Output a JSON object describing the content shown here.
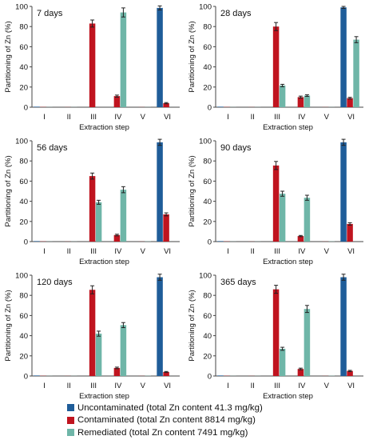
{
  "figure": {
    "ylabel": "Partitioning of Zn (%)",
    "xlabel": "Extraction step"
  },
  "colors": {
    "uncontaminated": "#1f5d99",
    "contaminated": "#c0141f",
    "remediated": "#6fb6a8"
  },
  "legend": [
    {
      "key": "uncontaminated",
      "label": "Uncontaminated (total Zn content 41.3 mg/kg)"
    },
    {
      "key": "contaminated",
      "label": "Contaminated (total Zn content 8814 mg/kg)"
    },
    {
      "key": "remediated",
      "label": "Remediated (total Zn content 7491 mg/kg)"
    }
  ],
  "chart_data": [
    {
      "type": "bar",
      "title": "7 days",
      "categories": [
        "I",
        "II",
        "III",
        "IV",
        "V",
        "VI"
      ],
      "ylim": [
        0,
        100
      ],
      "yticks": [
        0,
        20,
        40,
        60,
        80,
        100
      ],
      "xlabel": "Extraction step",
      "ylabel": "Partitioning of Zn (%)",
      "series": [
        {
          "name": "Uncontaminated (total Zn content 41.3 mg/kg)",
          "key": "uncontaminated",
          "values": [
            0.5,
            0,
            0,
            0,
            0,
            98.5
          ],
          "errors": [
            0,
            0,
            0,
            0,
            0,
            2
          ]
        },
        {
          "name": "Contaminated (total Zn content 8814 mg/kg)",
          "key": "contaminated",
          "values": [
            0.2,
            0.1,
            83,
            11,
            0.1,
            4
          ],
          "errors": [
            0,
            0,
            3.5,
            1,
            0,
            0.6
          ]
        },
        {
          "name": "Remediated (total Zn content 7491 mg/kg)",
          "key": "remediated",
          "values": [
            0.1,
            0.1,
            0,
            94,
            0.1,
            0
          ],
          "errors": [
            0,
            0,
            0,
            4.5,
            0,
            0
          ]
        }
      ]
    },
    {
      "type": "bar",
      "title": "28 days",
      "categories": [
        "I",
        "II",
        "III",
        "IV",
        "V",
        "VI"
      ],
      "ylim": [
        0,
        100
      ],
      "yticks": [
        0,
        20,
        40,
        60,
        80,
        100
      ],
      "xlabel": "Extraction step",
      "ylabel": "Partitioning of Zn (%)",
      "series": [
        {
          "name": "Uncontaminated (total Zn content 41.3 mg/kg)",
          "key": "uncontaminated",
          "values": [
            0.5,
            0,
            0,
            0,
            0,
            99
          ],
          "errors": [
            0,
            0,
            0,
            0,
            0,
            1
          ]
        },
        {
          "name": "Contaminated (total Zn content 8814 mg/kg)",
          "key": "contaminated",
          "values": [
            0.2,
            0.1,
            80,
            10,
            0.1,
            9
          ],
          "errors": [
            0,
            0,
            4,
            1,
            0,
            0.8
          ]
        },
        {
          "name": "Remediated (total Zn content 7491 mg/kg)",
          "key": "remediated",
          "values": [
            0.1,
            0.1,
            21.5,
            11.5,
            0.1,
            67
          ],
          "errors": [
            0,
            0,
            1.2,
            0.8,
            0,
            3
          ]
        }
      ]
    },
    {
      "type": "bar",
      "title": "56 days",
      "categories": [
        "I",
        "II",
        "III",
        "IV",
        "V",
        "VI"
      ],
      "ylim": [
        0,
        100
      ],
      "yticks": [
        0,
        20,
        40,
        60,
        80,
        100
      ],
      "xlabel": "Extraction step",
      "ylabel": "Partitioning of Zn (%)",
      "series": [
        {
          "name": "Uncontaminated (total Zn content 41.3 mg/kg)",
          "key": "uncontaminated",
          "values": [
            0.5,
            0,
            0,
            0,
            0,
            98.5
          ],
          "errors": [
            0,
            0,
            0,
            0,
            0,
            3
          ]
        },
        {
          "name": "Contaminated (total Zn content 8814 mg/kg)",
          "key": "contaminated",
          "values": [
            0.2,
            0.1,
            65,
            6.5,
            0.1,
            27
          ],
          "errors": [
            0,
            0,
            3,
            0.8,
            0,
            1.5
          ]
        },
        {
          "name": "Remediated (total Zn content 7491 mg/kg)",
          "key": "remediated",
          "values": [
            0.1,
            0.1,
            39,
            51.5,
            0.2,
            0
          ],
          "errors": [
            0,
            0,
            2,
            3,
            0,
            0
          ]
        }
      ]
    },
    {
      "type": "bar",
      "title": "90 days",
      "categories": [
        "I",
        "II",
        "III",
        "IV",
        "V",
        "VI"
      ],
      "ylim": [
        0,
        100
      ],
      "yticks": [
        0,
        20,
        40,
        60,
        80,
        100
      ],
      "xlabel": "Extraction step",
      "ylabel": "Partitioning of Zn (%)",
      "series": [
        {
          "name": "Uncontaminated (total Zn content 41.3 mg/kg)",
          "key": "uncontaminated",
          "values": [
            0.5,
            0,
            0,
            0,
            0,
            98.5
          ],
          "errors": [
            0,
            0,
            0,
            0,
            0,
            3
          ]
        },
        {
          "name": "Contaminated (total Zn content 8814 mg/kg)",
          "key": "contaminated",
          "values": [
            0.2,
            0.1,
            75.5,
            5.5,
            0.1,
            17.5
          ],
          "errors": [
            0,
            0,
            4,
            0.6,
            0,
            1.2
          ]
        },
        {
          "name": "Remediated (total Zn content 7491 mg/kg)",
          "key": "remediated",
          "values": [
            0.1,
            0.1,
            47.5,
            43.5,
            0.2,
            0
          ],
          "errors": [
            0,
            0,
            2.5,
            2.5,
            0,
            0
          ]
        }
      ]
    },
    {
      "type": "bar",
      "title": "120 days",
      "categories": [
        "I",
        "II",
        "III",
        "IV",
        "V",
        "VI"
      ],
      "ylim": [
        0,
        100
      ],
      "yticks": [
        0,
        20,
        40,
        60,
        80,
        100
      ],
      "xlabel": "Extraction step",
      "ylabel": "Partitioning of Zn (%)",
      "series": [
        {
          "name": "Uncontaminated (total Zn content 41.3 mg/kg)",
          "key": "uncontaminated",
          "values": [
            0.5,
            0,
            0,
            0,
            0,
            98
          ],
          "errors": [
            0,
            0,
            0,
            0,
            0,
            3
          ]
        },
        {
          "name": "Contaminated (total Zn content 8814 mg/kg)",
          "key": "contaminated",
          "values": [
            0.2,
            0.1,
            85.5,
            8,
            0.1,
            4
          ],
          "errors": [
            0,
            0,
            4,
            0.8,
            0,
            0.5
          ]
        },
        {
          "name": "Remediated (total Zn content 7491 mg/kg)",
          "key": "remediated",
          "values": [
            0.1,
            0.1,
            42,
            50.5,
            0.2,
            0
          ],
          "errors": [
            0,
            0,
            2.5,
            2.5,
            0,
            0
          ]
        }
      ]
    },
    {
      "type": "bar",
      "title": "365 days",
      "categories": [
        "I",
        "II",
        "III",
        "IV",
        "V",
        "VI"
      ],
      "ylim": [
        0,
        100
      ],
      "yticks": [
        0,
        20,
        40,
        60,
        80,
        100
      ],
      "xlabel": "Extraction step",
      "ylabel": "Partitioning of Zn (%)",
      "series": [
        {
          "name": "Uncontaminated (total Zn content 41.3 mg/kg)",
          "key": "uncontaminated",
          "values": [
            0.5,
            0,
            0,
            0,
            0,
            98
          ],
          "errors": [
            0,
            0,
            0,
            0,
            0,
            3
          ]
        },
        {
          "name": "Contaminated (total Zn content 8814 mg/kg)",
          "key": "contaminated",
          "values": [
            0.2,
            0.1,
            86,
            7,
            0.1,
            5
          ],
          "errors": [
            0,
            0,
            4,
            0.8,
            0,
            0.6
          ]
        },
        {
          "name": "Remediated (total Zn content 7491 mg/kg)",
          "key": "remediated",
          "values": [
            0.1,
            0.1,
            27,
            66.5,
            0.2,
            0
          ],
          "errors": [
            0,
            0,
            1.5,
            3.5,
            0,
            0
          ]
        }
      ]
    }
  ]
}
